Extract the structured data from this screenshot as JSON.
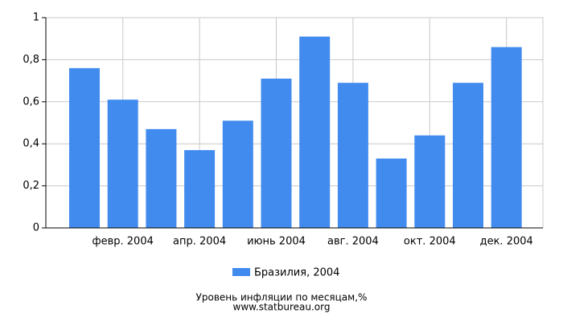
{
  "chart_data": {
    "type": "bar",
    "title": "Уровень инфляции по месяцам,%",
    "source": "www.statbureau.org",
    "categories": [
      null,
      "февр. 2004",
      null,
      "апр. 2004",
      null,
      "июнь 2004",
      null,
      "авг. 2004",
      null,
      "окт. 2004",
      null,
      "дек. 2004"
    ],
    "series": [
      {
        "name": "Бразилия, 2004",
        "color": "#418bef",
        "values": [
          0.76,
          0.61,
          0.47,
          0.37,
          0.51,
          0.71,
          0.91,
          0.69,
          0.33,
          0.44,
          0.69,
          0.86
        ]
      }
    ],
    "ylim": [
      0,
      1
    ],
    "yticks": [
      0,
      {
        "value": 0.2,
        "label": "0,2"
      },
      {
        "value": 0.4,
        "label": "0,4"
      },
      {
        "value": 0.6,
        "label": "0,6"
      },
      {
        "value": 0.8,
        "label": "0,8"
      },
      1
    ],
    "grid": true
  }
}
